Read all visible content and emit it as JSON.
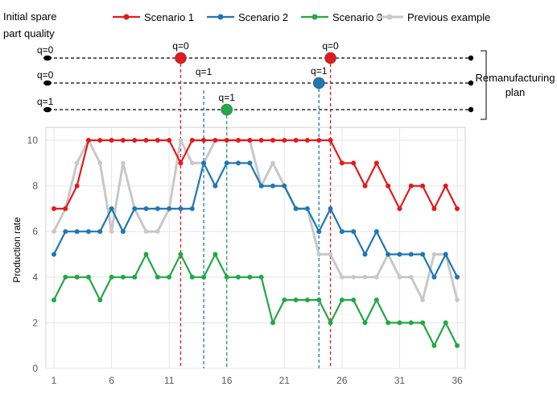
{
  "header": {
    "initial_quality_label_line1": "Initial spare",
    "initial_quality_label_line2": "part quality",
    "plan_label_line1": "Remanufacturing",
    "plan_label_line2": "plan"
  },
  "plan": {
    "rows": [
      {
        "scenario": "Scenario 1",
        "start_label": "q=0",
        "events": [
          {
            "x": 12,
            "label": "q=0",
            "color": "#e31a1c"
          },
          {
            "x": 25,
            "label": "q=0",
            "color": "#e31a1c"
          }
        ]
      },
      {
        "scenario": "Scenario 2",
        "start_label": "q=0",
        "events": [
          {
            "x": 24,
            "label": "q=1",
            "color": "#1f77b4"
          }
        ]
      },
      {
        "scenario": "Scenario 3",
        "start_label": "q=1",
        "events": [
          {
            "x": 16,
            "label": "q=1",
            "color": "#22a845"
          }
        ]
      }
    ],
    "floating_labels": [
      {
        "x": 14,
        "label": "q=1",
        "color": "#1f77b4"
      }
    ]
  },
  "chart_data": {
    "type": "line",
    "title": "",
    "xlabel": "",
    "ylabel": "Production rate",
    "xlim": [
      1,
      36
    ],
    "ylim": [
      0,
      10
    ],
    "x_ticks": [
      1,
      6,
      11,
      16,
      21,
      26,
      31,
      36
    ],
    "y_ticks": [
      0,
      2,
      4,
      6,
      8,
      10
    ],
    "grid": true,
    "legend_position": "top",
    "x": [
      1,
      2,
      3,
      4,
      5,
      6,
      7,
      8,
      9,
      10,
      11,
      12,
      13,
      14,
      15,
      16,
      17,
      18,
      19,
      20,
      21,
      22,
      23,
      24,
      25,
      26,
      27,
      28,
      29,
      30,
      31,
      32,
      33,
      34,
      35,
      36
    ],
    "vertical_markers": [
      {
        "x": 12,
        "color": "#e31a1c"
      },
      {
        "x": 14,
        "color": "#1f77b4"
      },
      {
        "x": 16,
        "color": "#22a845"
      },
      {
        "x": 24,
        "color": "#1f77b4"
      },
      {
        "x": 25,
        "color": "#e31a1c"
      }
    ],
    "series": [
      {
        "name": "Scenario 1",
        "color": "#e31a1c",
        "values": [
          7,
          7,
          8,
          10,
          10,
          10,
          10,
          10,
          10,
          10,
          10,
          9,
          10,
          10,
          10,
          10,
          10,
          10,
          10,
          10,
          10,
          10,
          10,
          10,
          10,
          9,
          9,
          8,
          9,
          8,
          7,
          8,
          8,
          7,
          8,
          7
        ]
      },
      {
        "name": "Scenario 2",
        "color": "#1f77b4",
        "values": [
          5,
          6,
          6,
          6,
          6,
          7,
          6,
          7,
          7,
          7,
          7,
          7,
          7,
          9,
          8,
          9,
          9,
          9,
          8,
          8,
          8,
          7,
          7,
          6,
          7,
          6,
          6,
          5,
          6,
          5,
          5,
          5,
          5,
          4,
          5,
          4
        ]
      },
      {
        "name": "Scenario 3",
        "color": "#22a845",
        "values": [
          3,
          4,
          4,
          4,
          3,
          4,
          4,
          4,
          5,
          4,
          4,
          5,
          4,
          4,
          5,
          4,
          4,
          4,
          4,
          2,
          3,
          3,
          3,
          3,
          2,
          3,
          3,
          2,
          3,
          2,
          2,
          2,
          2,
          1,
          2,
          1
        ]
      },
      {
        "name": "Previous example",
        "color": "#c8c8c8",
        "values": [
          6,
          7,
          9,
          10,
          9,
          6,
          9,
          7,
          6,
          6,
          7,
          10,
          9,
          9,
          10,
          10,
          10,
          10,
          8,
          9,
          8,
          7,
          7,
          5,
          5,
          4,
          4,
          4,
          4,
          5,
          4,
          4,
          3,
          5,
          5,
          3
        ]
      }
    ]
  }
}
